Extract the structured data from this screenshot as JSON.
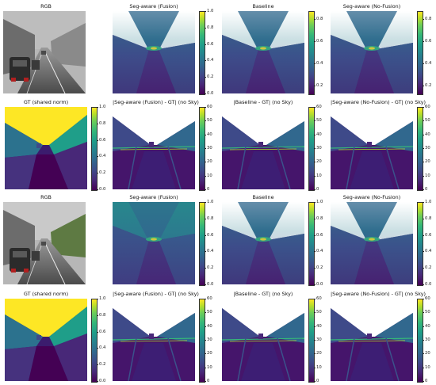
{
  "figure": {
    "rows": [
      {
        "panels": [
          {
            "kind": "rgb",
            "title": "RGB"
          },
          {
            "kind": "depth",
            "title": "Seg-aware (Fusion)",
            "ticks": [
              "1.0",
              "0.8",
              "0.6",
              "0.4",
              "0.2",
              "0.0"
            ]
          },
          {
            "kind": "depth",
            "title": "Baseline",
            "ticks": [
              "0.8",
              "0.6",
              "0.4",
              "0.2"
            ]
          },
          {
            "kind": "depth",
            "title": "Seg-aware (No-Fusion)",
            "ticks": [
              "0.8",
              "0.6",
              "0.4",
              "0.2"
            ]
          }
        ]
      },
      {
        "panels": [
          {
            "kind": "gt",
            "title": "GT (shared norm)",
            "ticks": [
              "1.0",
              "0.8",
              "0.6",
              "0.4",
              "0.2",
              "0.0"
            ]
          },
          {
            "kind": "err",
            "title": "|Seg-aware (Fusion) - GT| (no Sky)",
            "ticks": [
              "60",
              "50",
              "40",
              "30",
              "20",
              "10",
              "0"
            ]
          },
          {
            "kind": "err",
            "title": "|Baseline - GT| (no Sky)",
            "ticks": [
              "60",
              "50",
              "40",
              "30",
              "20",
              "10",
              "0"
            ]
          },
          {
            "kind": "err",
            "title": "|Seg-aware (No-Fusion) - GT| (no Sky)",
            "ticks": [
              "60",
              "50",
              "40",
              "30",
              "20",
              "10",
              "0"
            ]
          }
        ]
      },
      {
        "panels": [
          {
            "kind": "rgb",
            "title": "RGB"
          },
          {
            "kind": "depth",
            "title": "Seg-aware (Fusion)",
            "ticks": [
              "1.0",
              "0.8",
              "0.6",
              "0.4",
              "0.2",
              "0.0"
            ]
          },
          {
            "kind": "depth",
            "title": "Baseline",
            "ticks": [
              "1.0",
              "0.8",
              "0.6",
              "0.4",
              "0.2",
              "0.0"
            ]
          },
          {
            "kind": "depth",
            "title": "Seg-aware (No-Fusion)",
            "ticks": [
              "1.0",
              "0.8",
              "0.6",
              "0.4",
              "0.2",
              "0.0"
            ]
          }
        ]
      },
      {
        "panels": [
          {
            "kind": "gt",
            "title": "GT (shared norm)",
            "ticks": [
              "1.0",
              "0.8",
              "0.6",
              "0.4",
              "0.2",
              "0.0"
            ]
          },
          {
            "kind": "err",
            "title": "|Seg-aware (Fusion) - GT| (no Sky)",
            "ticks": [
              "60",
              "50",
              "40",
              "30",
              "20",
              "10",
              "0"
            ]
          },
          {
            "kind": "err",
            "title": "|Baseline - GT| (no Sky)",
            "ticks": [
              "60",
              "50",
              "40",
              "30",
              "20",
              "10",
              "0"
            ]
          },
          {
            "kind": "err",
            "title": "|Seg-aware (No-Fusion) - GT| (no Sky)",
            "ticks": [
              "60",
              "50",
              "40",
              "30",
              "20",
              "10",
              "0"
            ]
          }
        ]
      }
    ]
  }
}
